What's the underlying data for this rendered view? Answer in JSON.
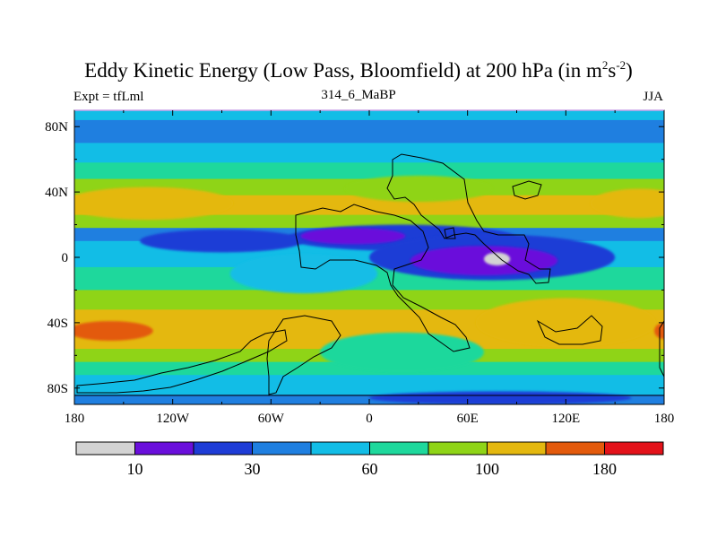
{
  "header": {
    "title_main": "Eddy Kinetic Energy (Low Pass, Bloomfield) at 200 hPa (in m",
    "title_sup1": "2",
    "title_mid": "s",
    "title_sup2": "-2",
    "title_end": ")",
    "left_label": "Expt = tfLml",
    "center_label": "314_6_MaBP",
    "right_label": "JJA"
  },
  "chart_data": {
    "type": "heatmap",
    "title": "Eddy Kinetic Energy (Low Pass, Bloomfield) at 200 hPa (in m2s-2)",
    "subtitle_left": "Expt = tfLml",
    "subtitle_center": "314_6_MaBP",
    "subtitle_right": "JJA",
    "xlim": [
      -180,
      180
    ],
    "ylim": [
      -90,
      90
    ],
    "x_ticks": [
      {
        "value": -180,
        "label": "180"
      },
      {
        "value": -120,
        "label": "120W"
      },
      {
        "value": -60,
        "label": "60W"
      },
      {
        "value": 0,
        "label": "0"
      },
      {
        "value": 60,
        "label": "60E"
      },
      {
        "value": 120,
        "label": "120E"
      },
      {
        "value": 180,
        "label": "180"
      }
    ],
    "y_ticks": [
      {
        "value": 80,
        "label": "80N"
      },
      {
        "value": 40,
        "label": "40N"
      },
      {
        "value": 0,
        "label": "0"
      },
      {
        "value": -40,
        "label": "40S"
      },
      {
        "value": -80,
        "label": "80S"
      }
    ],
    "colorbar": {
      "colors": [
        "#d3d3d3",
        "#6a0fdb",
        "#1e3cd6",
        "#1f7fe0",
        "#12bde6",
        "#1ed89c",
        "#8fd417",
        "#e4b80f",
        "#e35a0c",
        "#e3121a"
      ],
      "tick_labels": [
        {
          "after_box": 1,
          "label": "10"
        },
        {
          "after_box": 3,
          "label": "30"
        },
        {
          "after_box": 5,
          "label": "60"
        },
        {
          "after_box": 7,
          "label": "100"
        },
        {
          "after_box": 9,
          "label": "180"
        }
      ]
    },
    "bands": [
      {
        "lat_top": 90,
        "lat_bottom": 84,
        "level": 4
      },
      {
        "lat_top": 84,
        "lat_bottom": 70,
        "level": 3
      },
      {
        "lat_top": 70,
        "lat_bottom": 58,
        "level": 4
      },
      {
        "lat_top": 58,
        "lat_bottom": 48,
        "level": 5
      },
      {
        "lat_top": 48,
        "lat_bottom": 38,
        "level": 6
      },
      {
        "lat_top": 38,
        "lat_bottom": 26,
        "level": 7
      },
      {
        "lat_top": 26,
        "lat_bottom": 18,
        "level": 6
      },
      {
        "lat_top": 18,
        "lat_bottom": 10,
        "level": 3
      },
      {
        "lat_top": 10,
        "lat_bottom": -6,
        "level": 4
      },
      {
        "lat_top": -6,
        "lat_bottom": -20,
        "level": 5
      },
      {
        "lat_top": -20,
        "lat_bottom": -32,
        "level": 6
      },
      {
        "lat_top": -32,
        "lat_bottom": -56,
        "level": 7
      },
      {
        "lat_top": -56,
        "lat_bottom": -64,
        "level": 6
      },
      {
        "lat_top": -64,
        "lat_bottom": -72,
        "level": 5
      },
      {
        "lat_top": -72,
        "lat_bottom": -84,
        "level": 4
      },
      {
        "lat_top": -84,
        "lat_bottom": -90,
        "level": 3
      }
    ],
    "blobs": [
      {
        "lon": -135,
        "lat": 33,
        "rlon": 52,
        "rlat": 10,
        "level": 7
      },
      {
        "lon": 165,
        "lat": 33,
        "rlon": 30,
        "rlat": 9,
        "level": 7
      },
      {
        "lon": 30,
        "lat": 42,
        "rlon": 45,
        "rlat": 8,
        "level": 6
      },
      {
        "lon": 20,
        "lat": 12,
        "rlon": 70,
        "rlat": 8,
        "level": 2
      },
      {
        "lon": 75,
        "lat": 0,
        "rlon": 75,
        "rlat": 14,
        "level": 2
      },
      {
        "lon": -90,
        "lat": 10,
        "rlon": 50,
        "rlat": 7,
        "level": 2
      },
      {
        "lon": -10,
        "lat": 13,
        "rlon": 32,
        "rlat": 5,
        "level": 1
      },
      {
        "lon": 70,
        "lat": -2,
        "rlon": 45,
        "rlat": 9,
        "level": 1
      },
      {
        "lon": 78,
        "lat": -1,
        "rlon": 8,
        "rlat": 4,
        "level": 0
      },
      {
        "lon": -40,
        "lat": -10,
        "rlon": 45,
        "rlat": 12,
        "level": 4
      },
      {
        "lon": 120,
        "lat": -40,
        "rlon": 55,
        "rlat": 15,
        "level": 7
      },
      {
        "lon": -158,
        "lat": -45,
        "rlon": 26,
        "rlat": 6,
        "level": 8
      },
      {
        "lon": 180,
        "lat": -45,
        "rlon": 6,
        "rlat": 5,
        "level": 8
      },
      {
        "lon": 20,
        "lat": -58,
        "rlon": 50,
        "rlat": 12,
        "level": 5
      },
      {
        "lon": 80,
        "lat": -86,
        "rlon": 80,
        "rlat": 4,
        "level": 2
      }
    ]
  }
}
